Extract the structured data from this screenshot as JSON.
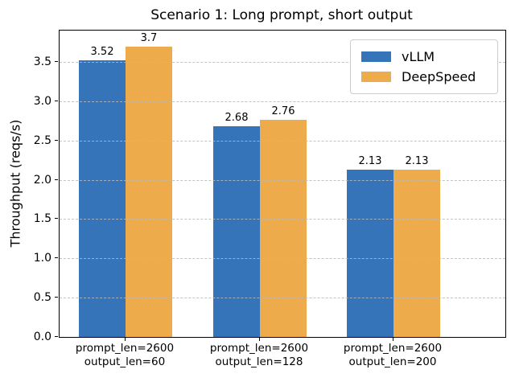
{
  "chart_data": {
    "type": "bar",
    "title": "Scenario 1: Long prompt, short output",
    "xlabel": "",
    "ylabel": "Throughput (reqs/s)",
    "categories": [
      "prompt_len=2600\noutput_len=60",
      "prompt_len=2600\noutput_len=128",
      "prompt_len=2600\noutput_len=200"
    ],
    "series": [
      {
        "name": "vLLM",
        "color": "#3574b9",
        "values": [
          3.52,
          2.68,
          2.13
        ],
        "value_labels": [
          "3.52",
          "2.68",
          "2.13"
        ]
      },
      {
        "name": "DeepSpeed",
        "color": "#edab4c",
        "values": [
          3.7,
          2.76,
          2.13
        ],
        "value_labels": [
          "3.7",
          "2.76",
          "2.13"
        ]
      }
    ],
    "ylim": [
      0,
      3.9
    ],
    "yticks": [
      0.0,
      0.5,
      1.0,
      1.5,
      2.0,
      2.5,
      3.0,
      3.5
    ],
    "ytick_labels": [
      "0.0",
      "0.5",
      "1.0",
      "1.5",
      "2.0",
      "2.5",
      "3.0",
      "3.5"
    ],
    "grid": "horizontal-dashed",
    "legend_position": "upper right"
  }
}
